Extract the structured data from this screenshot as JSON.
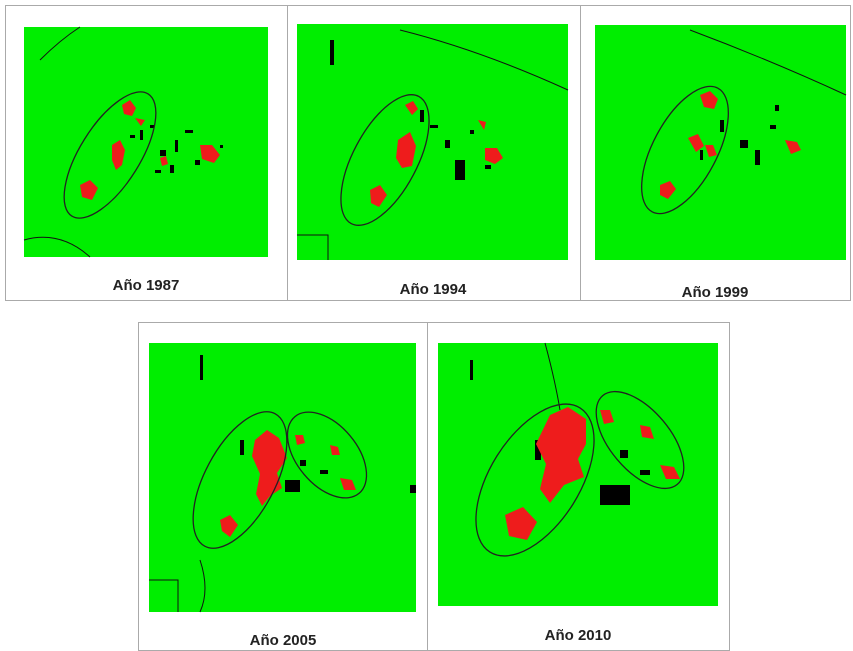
{
  "panels": [
    {
      "label": "Año 1987"
    },
    {
      "label": "Año 1994"
    },
    {
      "label": "Año 1999"
    },
    {
      "label": "Año 2005"
    },
    {
      "label": "Año 2010"
    }
  ]
}
